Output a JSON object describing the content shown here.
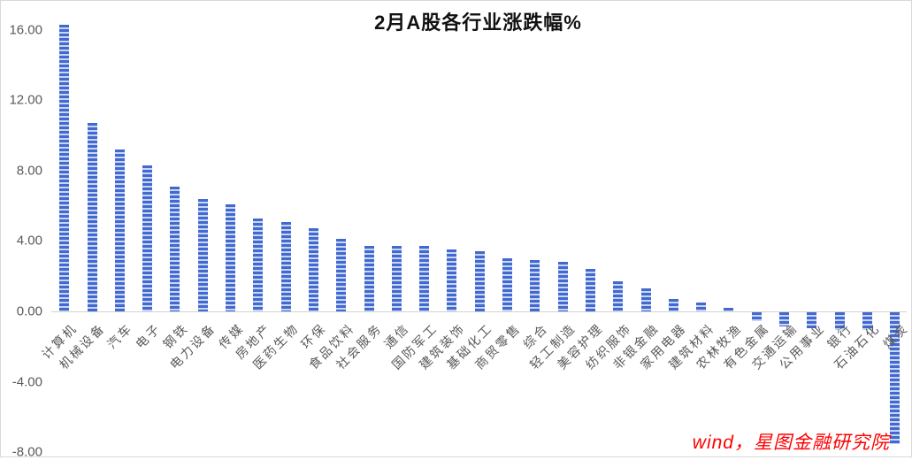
{
  "chart_data": {
    "type": "bar",
    "title": "2月A股各行业涨跌幅%",
    "categories": [
      "计算机",
      "机械设备",
      "汽车",
      "电子",
      "钢铁",
      "电力设备",
      "传媒",
      "房地产",
      "医药生物",
      "环保",
      "食品饮料",
      "社会服务",
      "通信",
      "国防军工",
      "建筑装饰",
      "基础化工",
      "商贸零售",
      "综合",
      "轻工制造",
      "美容护理",
      "纺织服饰",
      "非银金融",
      "家用电器",
      "建筑材料",
      "农林牧渔",
      "有色金属",
      "交通运输",
      "公用事业",
      "银行",
      "石油石化",
      "煤炭"
    ],
    "values": [
      16.3,
      10.7,
      9.2,
      8.3,
      7.1,
      6.4,
      6.1,
      5.3,
      5.1,
      4.7,
      4.1,
      3.7,
      3.7,
      3.7,
      3.5,
      3.4,
      3.0,
      2.9,
      2.8,
      2.4,
      1.7,
      1.3,
      0.7,
      0.5,
      0.2,
      -0.5,
      -0.8,
      -0.9,
      -1.0,
      -1.0,
      -7.5
    ],
    "xlabel": "",
    "ylabel": "",
    "ylim": [
      -8,
      16.4
    ],
    "y_ticks": [
      "16.00",
      "12.00",
      "8.00",
      "4.00",
      "0.00",
      "-4.00",
      "-8.00"
    ],
    "legend": "none",
    "grid": "zero-line-only",
    "bar_style": "horizontal-stripe-pattern"
  },
  "watermark": "wind，星图金融研究院",
  "colors": {
    "bar_stripe_blue": "#4269d2",
    "bar_stripe_light": "#c9d6f0",
    "axis_line": "#d3d3d3",
    "tick_text": "#595959",
    "title_text": "#111111",
    "watermark_red": "#ff0000",
    "frame_border": "#d9d9d9"
  }
}
